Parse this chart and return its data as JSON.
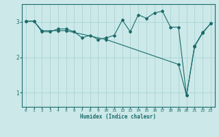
{
  "xlabel": "Humidex (Indice chaleur)",
  "bg_color": "#cce8e8",
  "grid_color": "#aad4d4",
  "line_color": "#1a6b6b",
  "xlim": [
    -0.5,
    23.5
  ],
  "ylim": [
    0.6,
    3.5
  ],
  "yticks": [
    1,
    2,
    3
  ],
  "xticks": [
    0,
    1,
    2,
    3,
    4,
    5,
    6,
    7,
    8,
    9,
    10,
    11,
    12,
    13,
    14,
    15,
    16,
    17,
    18,
    19,
    20,
    21,
    22,
    23
  ],
  "series1_x": [
    0,
    1,
    2,
    3,
    4,
    5,
    6,
    7,
    8,
    9,
    10,
    11,
    12,
    13,
    14,
    15,
    16,
    17,
    18,
    19,
    20,
    21,
    22,
    23
  ],
  "series1_y": [
    3.02,
    3.02,
    2.72,
    2.72,
    2.8,
    2.8,
    2.72,
    2.55,
    2.62,
    2.5,
    2.55,
    2.62,
    3.05,
    2.72,
    3.2,
    3.1,
    3.25,
    3.3,
    2.85,
    2.85,
    0.92,
    2.32,
    2.7,
    2.95
  ],
  "series2_x": [
    0,
    1,
    2,
    4,
    5,
    10,
    19,
    20,
    21,
    22,
    23
  ],
  "series2_y": [
    3.02,
    3.02,
    2.75,
    2.75,
    2.75,
    2.5,
    1.8,
    0.92,
    2.3,
    2.68,
    2.95
  ],
  "figwidth": 3.2,
  "figheight": 2.0,
  "dpi": 100
}
